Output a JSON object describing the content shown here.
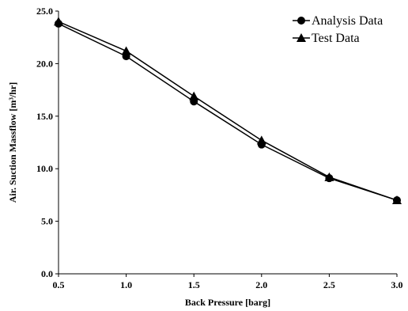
{
  "chart_data": {
    "type": "line",
    "title": "",
    "xlabel": "Back Pressure [barg]",
    "ylabel": "Air. Suction Massflow [m³/hr]",
    "x": [
      0.5,
      1.0,
      1.5,
      2.0,
      2.5,
      3.0
    ],
    "xticks": [
      "0.5",
      "1.0",
      "1.5",
      "2.0",
      "2.5",
      "3.0"
    ],
    "yticks": [
      "0.0",
      "5.0",
      "10.0",
      "15.0",
      "20.0",
      "25.0"
    ],
    "xlim": [
      0.5,
      3.0
    ],
    "ylim": [
      0,
      25
    ],
    "grid": false,
    "legend_position": "top-right",
    "series": [
      {
        "name": "Analysis Data",
        "marker": "circle",
        "values": [
          23.8,
          20.7,
          16.4,
          12.3,
          9.1,
          7.0
        ]
      },
      {
        "name": "Test Data",
        "marker": "triangle",
        "values": [
          24.0,
          21.2,
          16.9,
          12.7,
          9.2,
          7.0
        ]
      }
    ],
    "colors": {
      "line": "#000000",
      "marker": "#000000"
    }
  }
}
